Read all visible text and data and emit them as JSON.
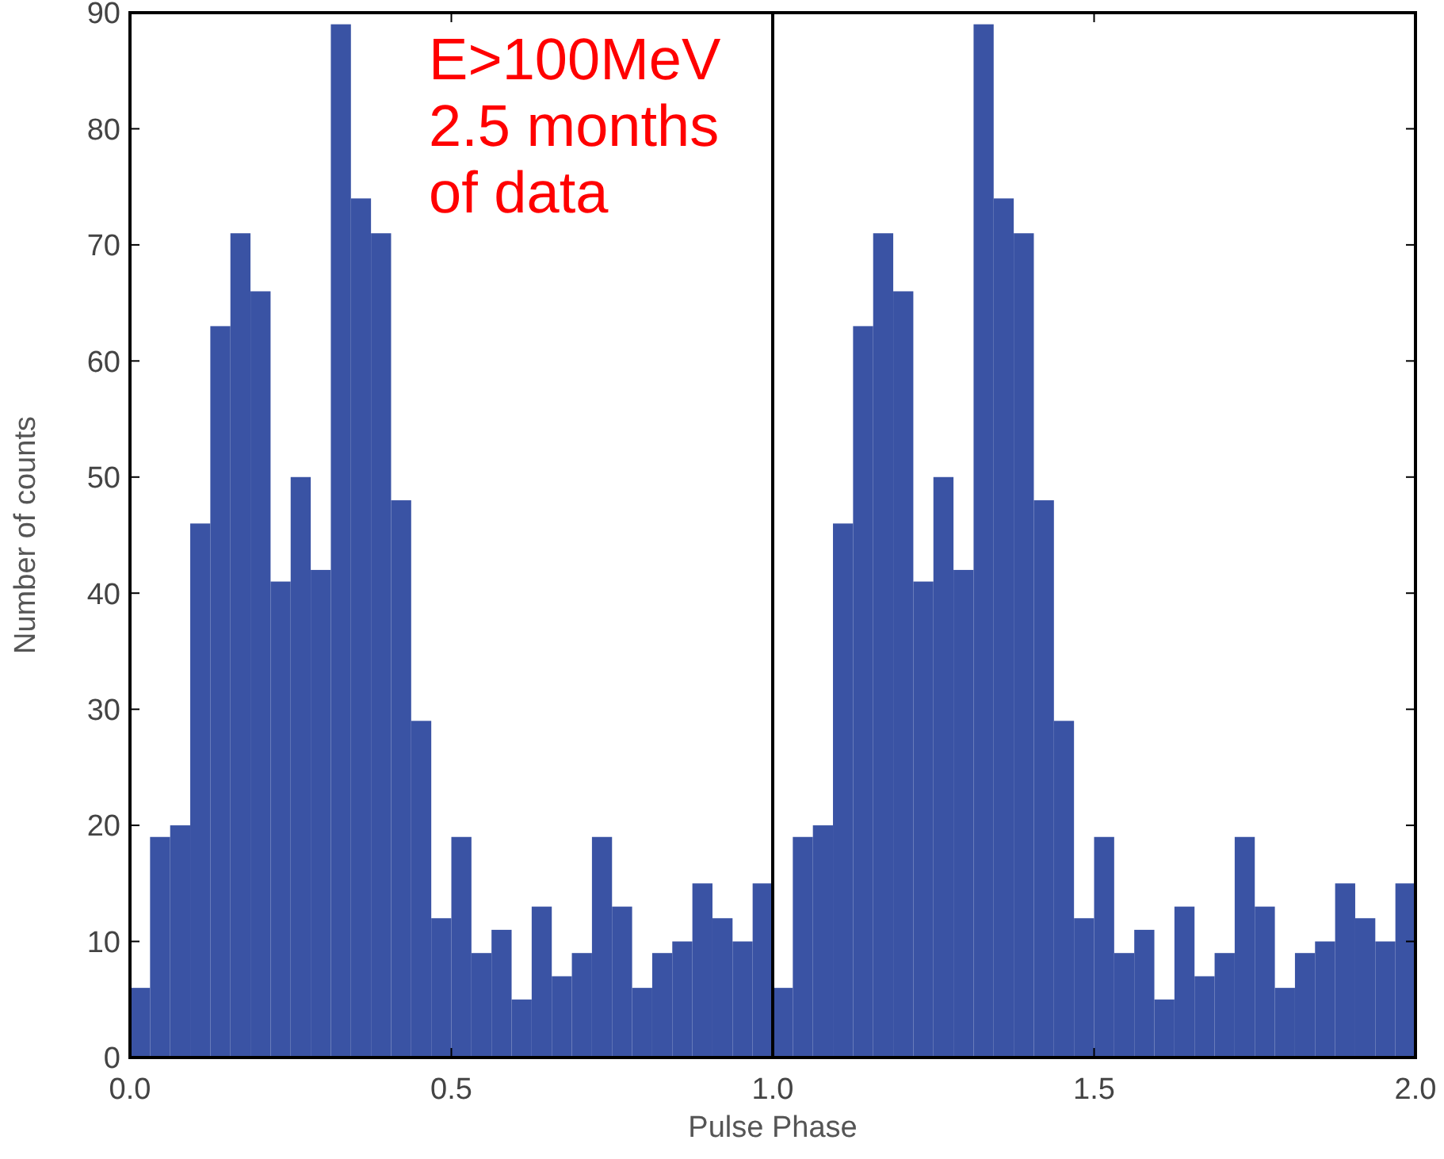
{
  "chart_data": {
    "type": "histogram",
    "xlabel": "Pulse Phase",
    "ylabel": "Number of counts",
    "bins": [
      0,
      0.03125,
      0.0625,
      0.09375,
      0.125,
      0.15625,
      0.1875,
      0.21875,
      0.25,
      0.28125,
      0.3125,
      0.34375,
      0.375,
      0.40625,
      0.4375,
      0.46875,
      0.5,
      0.53125,
      0.5625,
      0.59375,
      0.625,
      0.65625,
      0.6875,
      0.71875,
      0.75,
      0.78125,
      0.8125,
      0.84375,
      0.875,
      0.90625,
      0.9375,
      0.96875,
      1,
      1.03125,
      1.0625,
      1.09375,
      1.125,
      1.15625,
      1.1875,
      1.21875,
      1.25,
      1.28125,
      1.3125,
      1.34375,
      1.375,
      1.40625,
      1.4375,
      1.46875,
      1.5,
      1.53125,
      1.5625,
      1.59375,
      1.625,
      1.65625,
      1.6875,
      1.71875,
      1.75,
      1.78125,
      1.8125,
      1.84375,
      1.875,
      1.90625,
      1.9375,
      1.96875,
      2
    ],
    "values": [
      6,
      19,
      20,
      46,
      63,
      71,
      66,
      41,
      50,
      42,
      89,
      74,
      71,
      48,
      29,
      12,
      19,
      9,
      11,
      5,
      13,
      7,
      9,
      19,
      13,
      6,
      9,
      10,
      15,
      12,
      10,
      15,
      6,
      19,
      20,
      46,
      63,
      71,
      66,
      41,
      50,
      42,
      89,
      74,
      71,
      48,
      29,
      12,
      19,
      9,
      11,
      5,
      13,
      7,
      9,
      19,
      13,
      6,
      9,
      10,
      15,
      12,
      10,
      15
    ],
    "color": "#3a53a4",
    "xlim": [
      0,
      2
    ],
    "ylim": [
      0,
      90
    ],
    "xticks": [
      {
        "value": 0,
        "label": "0.0"
      },
      {
        "value": 0.5,
        "label": "0.5"
      },
      {
        "value": 1,
        "label": "1.0"
      },
      {
        "value": 1.5,
        "label": "1.5"
      },
      {
        "value": 2,
        "label": "2.0"
      }
    ],
    "yticks": [
      0,
      10,
      20,
      30,
      40,
      50,
      60,
      70,
      80,
      90
    ],
    "ref_lines": [
      {
        "axis": "x",
        "value": 1,
        "color": "#000000"
      }
    ],
    "annotations": [
      "E>100MeV\n2.5 months\nof data"
    ]
  }
}
